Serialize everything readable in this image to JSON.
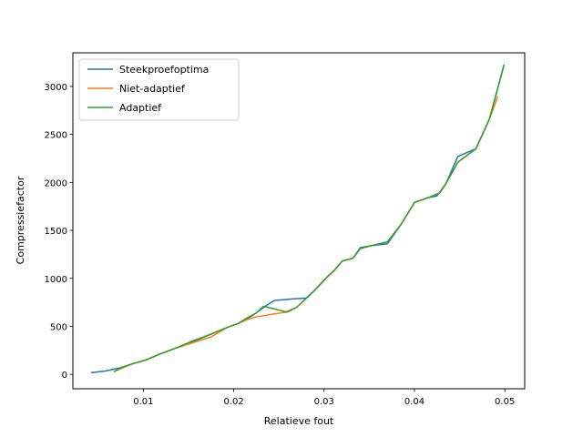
{
  "chart_data": {
    "type": "line",
    "title": "",
    "xlabel": "Relatieve fout",
    "ylabel": "Compressiefactor",
    "xlim": [
      0.0022,
      0.0522
    ],
    "ylim": [
      -150,
      3350
    ],
    "xticks": [
      0.01,
      0.02,
      0.03,
      0.04,
      0.05
    ],
    "xtick_labels": [
      "0.01",
      "0.02",
      "0.03",
      "0.04",
      "0.05"
    ],
    "yticks": [
      0,
      500,
      1000,
      1500,
      2000,
      2500,
      3000
    ],
    "ytick_labels": [
      "0",
      "500",
      "1000",
      "1500",
      "2000",
      "2500",
      "3000"
    ],
    "grid": false,
    "legend_position": "top-left",
    "series": [
      {
        "name": "Steekproefoptima",
        "color": "#1f77b4",
        "x": [
          0.0043,
          0.0058,
          0.0075,
          0.0088,
          0.0103,
          0.0118,
          0.0135,
          0.0155,
          0.0175,
          0.0193,
          0.0205,
          0.0215,
          0.0225,
          0.0235,
          0.0245,
          0.0265,
          0.028,
          0.029,
          0.0303,
          0.0312,
          0.032,
          0.0332,
          0.034,
          0.0352,
          0.037,
          0.0385,
          0.04,
          0.0415,
          0.0425,
          0.0435,
          0.0448,
          0.0468,
          0.0483,
          0.0499
        ],
        "y": [
          18,
          35,
          70,
          110,
          150,
          210,
          270,
          340,
          420,
          490,
          530,
          580,
          640,
          710,
          770,
          785,
          795,
          880,
          1010,
          1090,
          1180,
          1210,
          1320,
          1340,
          1360,
          1560,
          1790,
          1840,
          1860,
          1990,
          2270,
          2350,
          2660,
          3220
        ]
      },
      {
        "name": "Niet-adaptief",
        "color": "#ff7f0e",
        "x": [
          0.0068,
          0.0088,
          0.0103,
          0.0118,
          0.0135,
          0.0155,
          0.0175,
          0.0193,
          0.0205,
          0.0215,
          0.0225,
          0.0245,
          0.026,
          0.027,
          0.028,
          0.029,
          0.0303,
          0.0312,
          0.032,
          0.0332,
          0.034,
          0.0352,
          0.037,
          0.0385,
          0.04,
          0.0415,
          0.0428,
          0.0435,
          0.0448,
          0.0468,
          0.0483,
          0.0492
        ],
        "y": [
          30,
          110,
          150,
          210,
          270,
          330,
          390,
          490,
          530,
          570,
          600,
          630,
          650,
          700,
          790,
          880,
          1010,
          1090,
          1180,
          1210,
          1310,
          1340,
          1380,
          1560,
          1790,
          1840,
          1890,
          1990,
          2210,
          2350,
          2660,
          2890
        ]
      },
      {
        "name": "Adaptief",
        "color": "#2ca02c",
        "x": [
          0.0068,
          0.0075,
          0.0088,
          0.0103,
          0.0118,
          0.0135,
          0.0155,
          0.0175,
          0.0193,
          0.0205,
          0.0215,
          0.0225,
          0.0233,
          0.0258,
          0.027,
          0.028,
          0.029,
          0.0303,
          0.0312,
          0.032,
          0.0332,
          0.034,
          0.0352,
          0.037,
          0.0385,
          0.04,
          0.0415,
          0.0428,
          0.0435,
          0.0448,
          0.0468,
          0.0483,
          0.0499
        ],
        "y": [
          30,
          70,
          110,
          150,
          210,
          270,
          350,
          420,
          490,
          530,
          590,
          640,
          710,
          650,
          700,
          790,
          880,
          1010,
          1090,
          1180,
          1210,
          1310,
          1340,
          1380,
          1560,
          1790,
          1840,
          1890,
          1990,
          2210,
          2350,
          2660,
          3220
        ]
      }
    ]
  }
}
